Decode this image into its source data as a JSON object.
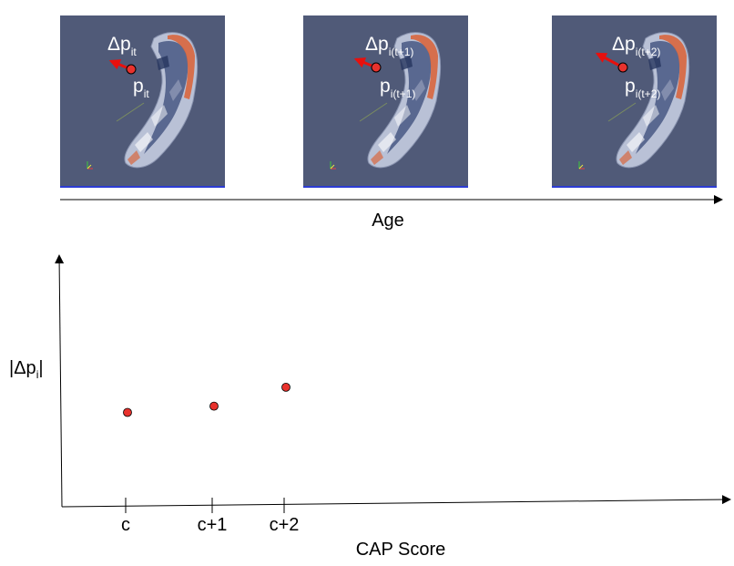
{
  "panels": [
    {
      "delta_label": {
        "base": "Δp",
        "sub": "it"
      },
      "point_label": {
        "base": "p",
        "sub": "it"
      }
    },
    {
      "delta_label": {
        "base": "Δp",
        "sub": "i(t+1)"
      },
      "point_label": {
        "base": "p",
        "sub": "i(t+1)"
      }
    },
    {
      "delta_label": {
        "base": "Δp",
        "sub": "i(t+2)"
      },
      "point_label": {
        "base": "p",
        "sub": "i(t+2)"
      }
    }
  ],
  "age_axis": {
    "label": "Age"
  },
  "chart_data": {
    "type": "scatter",
    "xlabel": "CAP Score",
    "ylabel": {
      "base": "|Δp",
      "sub": "i",
      "close": "|"
    },
    "categories": [
      "c",
      "c+1",
      "c+2"
    ],
    "values": [
      3.0,
      3.2,
      3.8
    ],
    "ylim": [
      0,
      8
    ],
    "grid": false,
    "marker_color": "#e8322d"
  },
  "colors": {
    "panel_background": "#505a78",
    "mesh_light": "#b9c1d6",
    "mesh_dark": "#3a4a78",
    "mesh_accent": "#d9663e",
    "arrow": "#e8100d",
    "point": "#e8322d"
  }
}
